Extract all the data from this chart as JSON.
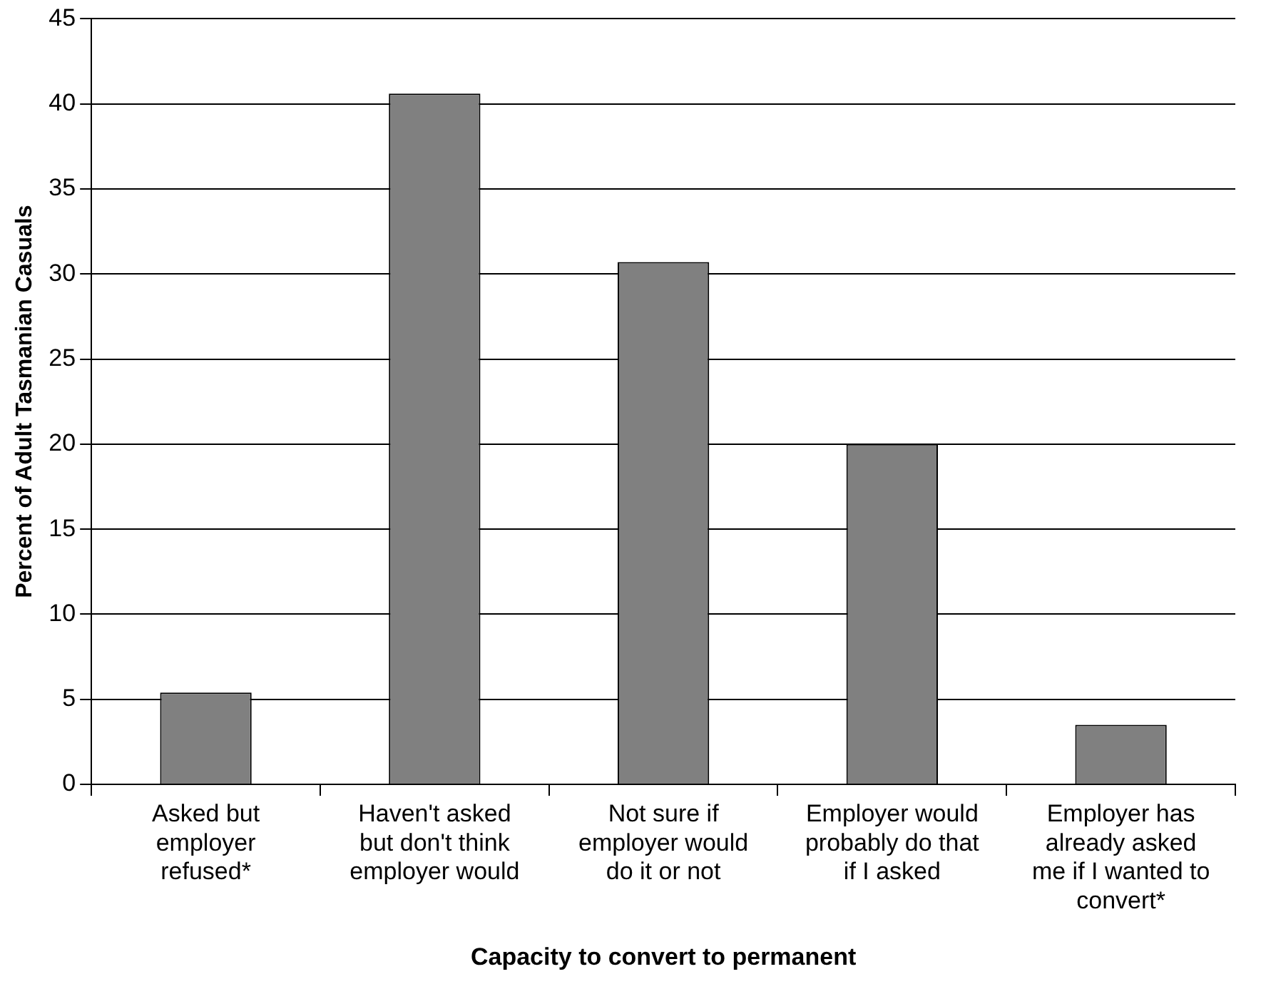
{
  "chart_data": {
    "type": "bar",
    "xlabel": "Capacity to convert to permanent",
    "ylabel": "Percent of Adult Tasmanian Casuals",
    "categories": [
      "Asked but employer refused*",
      "Haven't asked but don't think employer would",
      "Not sure if employer would do it or not",
      "Employer would probably do that if I asked",
      "Employer has already asked me if I wanted to convert*"
    ],
    "values": [
      5.4,
      40.6,
      30.7,
      20.0,
      3.5
    ],
    "color": "#808080",
    "ylim": [
      0,
      45
    ],
    "yticks": [
      0,
      5,
      10,
      15,
      20,
      25,
      30,
      35,
      40,
      45
    ],
    "grid": "y"
  }
}
